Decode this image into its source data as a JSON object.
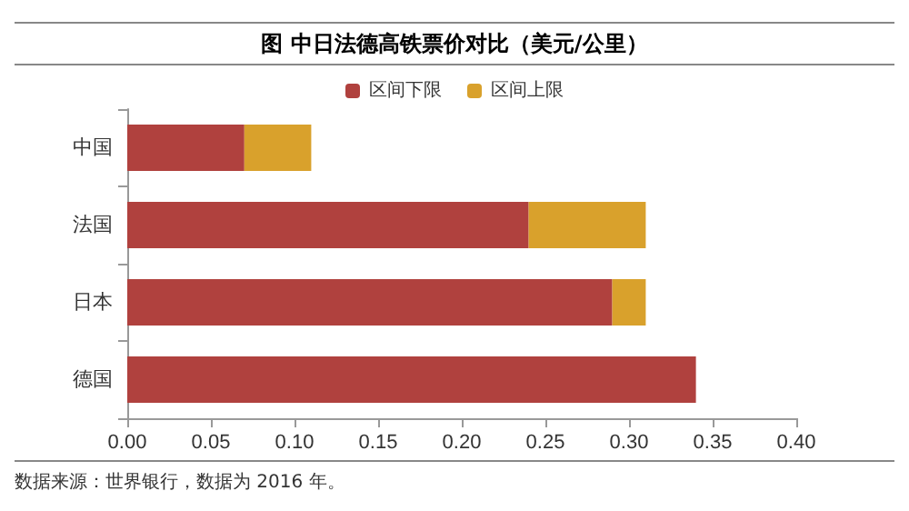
{
  "chart_data": {
    "type": "bar",
    "orientation": "horizontal",
    "stacked": true,
    "title": "图  中日法德高铁票价对比（美元/公里）",
    "categories": [
      "中国",
      "法国",
      "日本",
      "德国"
    ],
    "series": [
      {
        "name": "区间下限",
        "color": "#b0413e",
        "values": [
          0.07,
          0.24,
          0.29,
          0.34
        ]
      },
      {
        "name": "区间上限",
        "color": "#d9a12c",
        "values": [
          0.04,
          0.07,
          0.02,
          0
        ]
      }
    ],
    "xlim": [
      0,
      0.4
    ],
    "xticks": [
      {
        "value": 0,
        "label": "0.00"
      },
      {
        "value": 0.05,
        "label": "0.05"
      },
      {
        "value": 0.1,
        "label": "0.10"
      },
      {
        "value": 0.15,
        "label": "0.15"
      },
      {
        "value": 0.2,
        "label": "0.20"
      },
      {
        "value": 0.25,
        "label": "0.25"
      },
      {
        "value": 0.3,
        "label": "0.30"
      },
      {
        "value": 0.35,
        "label": "0.35"
      },
      {
        "value": 0.4,
        "label": "0.40"
      }
    ],
    "grid": false,
    "legend": "top",
    "annotations": [
      "数据来源：世界银行，数据为 2016 年。"
    ]
  }
}
